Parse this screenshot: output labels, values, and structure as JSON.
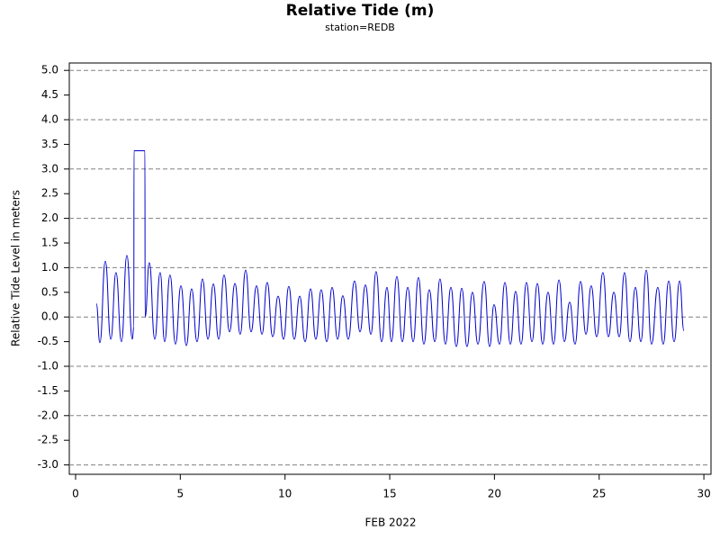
{
  "chart_data": {
    "type": "line",
    "title": "Relative Tide (m)",
    "subtitle": "station=REDB",
    "xlabel": "FEB 2022",
    "ylabel": "Relative Tide Level in meters",
    "xlim": [
      -0.3,
      30.34
    ],
    "ylim": [
      -3.19,
      5.15
    ],
    "xticks": [
      0,
      5,
      10,
      15,
      20,
      25,
      30
    ],
    "yticks": [
      {
        "value": -3,
        "label": "-3.0"
      },
      -2.5,
      {
        "value": -2,
        "label": "-2.0"
      },
      -1.5,
      {
        "value": -1,
        "label": "-1.0"
      },
      -0.5,
      {
        "value": 0,
        "label": "0.0"
      },
      0.5,
      {
        "value": 1,
        "label": "1.0"
      },
      1.5,
      {
        "value": 2,
        "label": "2.0"
      },
      2.5,
      {
        "value": 3,
        "label": "3.0"
      },
      3.5,
      {
        "value": 4,
        "label": "4.0"
      },
      4.5,
      {
        "value": 5,
        "label": "5.0"
      }
    ],
    "grid": true,
    "x": [
      0.99,
      1.16,
      1.42,
      1.68,
      1.93,
      2.19,
      2.45,
      2.71,
      2.78,
      2.79,
      3.31,
      3.32,
      3.52,
      3.78,
      4.04,
      4.25,
      4.51,
      4.77,
      5.03,
      5.29,
      5.54,
      5.8,
      6.06,
      6.32,
      6.58,
      6.83,
      7.09,
      7.35,
      7.61,
      7.86,
      8.12,
      8.38,
      8.64,
      8.9,
      9.15,
      9.41,
      9.67,
      9.93,
      10.18,
      10.44,
      10.7,
      10.96,
      11.22,
      11.47,
      11.73,
      11.99,
      12.25,
      12.51,
      12.76,
      13.02,
      13.32,
      13.58,
      13.84,
      14.1,
      14.35,
      14.61,
      14.87,
      15.08,
      15.34,
      15.6,
      15.86,
      16.12,
      16.37,
      16.63,
      16.89,
      17.15,
      17.4,
      17.66,
      17.92,
      18.18,
      18.44,
      18.69,
      18.95,
      19.21,
      19.51,
      19.77,
      19.98,
      20.24,
      20.5,
      20.76,
      21.01,
      21.27,
      21.53,
      21.79,
      22.05,
      22.3,
      22.56,
      22.82,
      23.08,
      23.34,
      23.59,
      23.85,
      24.11,
      24.37,
      24.62,
      24.88,
      25.18,
      25.44,
      25.7,
      25.96,
      26.21,
      26.47,
      26.73,
      26.99,
      27.25,
      27.5,
      27.8,
      28.06,
      28.32,
      28.58,
      28.84,
      29.05
    ],
    "series": [
      {
        "name": "Relative Tide",
        "color": "#0000cc",
        "values": [
          0.27,
          -0.52,
          1.13,
          -0.45,
          0.9,
          -0.5,
          1.25,
          -0.45,
          -0.2,
          3.37,
          3.37,
          0.0,
          1.1,
          -0.45,
          0.9,
          -0.5,
          0.85,
          -0.55,
          0.63,
          -0.58,
          0.57,
          -0.5,
          0.77,
          -0.45,
          0.67,
          -0.45,
          0.85,
          -0.3,
          0.68,
          -0.35,
          0.95,
          -0.3,
          0.63,
          -0.35,
          0.7,
          -0.4,
          0.42,
          -0.45,
          0.62,
          -0.45,
          0.42,
          -0.5,
          0.57,
          -0.45,
          0.55,
          -0.5,
          0.6,
          -0.45,
          0.43,
          -0.45,
          0.73,
          -0.3,
          0.65,
          -0.35,
          0.92,
          -0.5,
          0.6,
          -0.5,
          0.82,
          -0.5,
          0.6,
          -0.5,
          0.8,
          -0.55,
          0.55,
          -0.5,
          0.77,
          -0.55,
          0.6,
          -0.6,
          0.58,
          -0.6,
          0.5,
          -0.55,
          0.72,
          -0.6,
          0.25,
          -0.55,
          0.7,
          -0.55,
          0.52,
          -0.55,
          0.7,
          -0.5,
          0.68,
          -0.55,
          0.5,
          -0.55,
          0.75,
          -0.5,
          0.3,
          -0.55,
          0.72,
          -0.35,
          0.63,
          -0.4,
          0.9,
          -0.4,
          0.5,
          -0.4,
          0.9,
          -0.5,
          0.6,
          -0.5,
          0.95,
          -0.55,
          0.6,
          -0.55,
          0.73,
          -0.5,
          0.73,
          -0.28
        ]
      }
    ]
  }
}
